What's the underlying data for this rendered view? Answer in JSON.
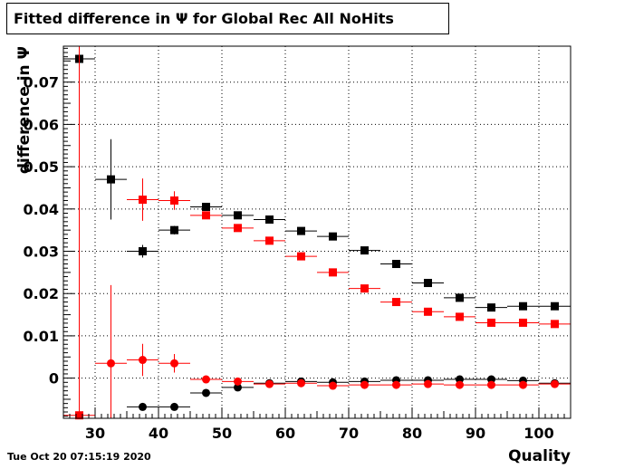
{
  "chart_data": {
    "type": "scatter",
    "title": "Fitted difference in  Ψ  for Global Rec All NoHits",
    "xlabel": "Quality",
    "ylabel": "difference in  Ψ",
    "xlim": [
      25,
      105
    ],
    "ylim": [
      -0.0095,
      0.0785
    ],
    "grid": true,
    "x_ticks": [
      30,
      40,
      50,
      60,
      70,
      80,
      90,
      100
    ],
    "y_ticks": [
      0,
      0.01,
      0.02,
      0.03,
      0.04,
      0.05,
      0.06,
      0.07
    ],
    "y_tick_labels": [
      "0",
      "0.01",
      "0.02",
      "0.03",
      "0.04",
      "0.05",
      "0.06",
      "0.07"
    ],
    "bin_half_width": 2.5,
    "series": [
      {
        "color": "#000000",
        "marker": "square",
        "points": [
          {
            "x": 27.5,
            "y": 0.0755,
            "err": 0.003
          },
          {
            "x": 32.5,
            "y": 0.047,
            "err": 0.0095
          },
          {
            "x": 37.5,
            "y": 0.03,
            "err": 0.0015
          },
          {
            "x": 42.5,
            "y": 0.035,
            "err": 0.001
          },
          {
            "x": 47.5,
            "y": 0.0405,
            "err": 0.0007
          },
          {
            "x": 52.5,
            "y": 0.0385,
            "err": 0.0005
          },
          {
            "x": 57.5,
            "y": 0.0375,
            "err": 0.0004
          },
          {
            "x": 62.5,
            "y": 0.0348,
            "err": 0.0004
          },
          {
            "x": 67.5,
            "y": 0.0335,
            "err": 0.0004
          },
          {
            "x": 72.5,
            "y": 0.0302,
            "err": 0.0004
          },
          {
            "x": 77.5,
            "y": 0.027,
            "err": 0.0004
          },
          {
            "x": 82.5,
            "y": 0.0225,
            "err": 0.0004
          },
          {
            "x": 87.5,
            "y": 0.019,
            "err": 0.0004
          },
          {
            "x": 92.5,
            "y": 0.0167,
            "err": 0.0004
          },
          {
            "x": 97.5,
            "y": 0.017,
            "err": 0.0004
          },
          {
            "x": 102.5,
            "y": 0.017,
            "err": 0.0004
          }
        ]
      },
      {
        "color": "#ff0000",
        "marker": "square",
        "points": [
          {
            "x": 27.5,
            "y": -0.0088,
            "err": 0.1
          },
          {
            "x": 37.5,
            "y": 0.0422,
            "err": 0.005
          },
          {
            "x": 42.5,
            "y": 0.042,
            "err": 0.0022
          },
          {
            "x": 47.5,
            "y": 0.0385,
            "err": 0.0009
          },
          {
            "x": 52.5,
            "y": 0.0355,
            "err": 0.0006
          },
          {
            "x": 57.5,
            "y": 0.0325,
            "err": 0.0005
          },
          {
            "x": 62.5,
            "y": 0.0288,
            "err": 0.0004
          },
          {
            "x": 67.5,
            "y": 0.025,
            "err": 0.0004
          },
          {
            "x": 72.5,
            "y": 0.0212,
            "err": 0.0004
          },
          {
            "x": 77.5,
            "y": 0.018,
            "err": 0.0004
          },
          {
            "x": 82.5,
            "y": 0.0157,
            "err": 0.0004
          },
          {
            "x": 87.5,
            "y": 0.0145,
            "err": 0.0004
          },
          {
            "x": 92.5,
            "y": 0.0131,
            "err": 0.0004
          },
          {
            "x": 97.5,
            "y": 0.0131,
            "err": 0.0004
          },
          {
            "x": 102.5,
            "y": 0.0128,
            "err": 0.0004
          }
        ]
      },
      {
        "color": "#000000",
        "marker": "circle",
        "points": [
          {
            "x": 37.5,
            "y": -0.0068,
            "err": 0.0007
          },
          {
            "x": 42.5,
            "y": -0.0068,
            "err": 0.0005
          },
          {
            "x": 47.5,
            "y": -0.0035,
            "err": 0.0003
          },
          {
            "x": 52.5,
            "y": -0.0022,
            "err": 0.0002
          },
          {
            "x": 57.5,
            "y": -0.0012,
            "err": 0.0002
          },
          {
            "x": 62.5,
            "y": -0.0008,
            "err": 0.0002
          },
          {
            "x": 67.5,
            "y": -0.001,
            "err": 0.0002
          },
          {
            "x": 72.5,
            "y": -0.0008,
            "err": 0.0002
          },
          {
            "x": 77.5,
            "y": -0.0005,
            "err": 0.0002
          },
          {
            "x": 82.5,
            "y": -0.0005,
            "err": 0.0002
          },
          {
            "x": 87.5,
            "y": -0.0003,
            "err": 0.0002
          },
          {
            "x": 92.5,
            "y": -0.0003,
            "err": 0.0002
          },
          {
            "x": 97.5,
            "y": -0.0006,
            "err": 0.0002
          },
          {
            "x": 102.5,
            "y": -0.0012,
            "err": 0.0002
          }
        ]
      },
      {
        "color": "#ff0000",
        "marker": "circle",
        "points": [
          {
            "x": 32.5,
            "y": 0.0035,
            "err": 0.0185
          },
          {
            "x": 37.5,
            "y": 0.0043,
            "err": 0.0038
          },
          {
            "x": 42.5,
            "y": 0.0035,
            "err": 0.0022
          },
          {
            "x": 47.5,
            "y": -0.0003,
            "err": 0.0008
          },
          {
            "x": 52.5,
            "y": -0.0008,
            "err": 0.0005
          },
          {
            "x": 57.5,
            "y": -0.0014,
            "err": 0.0004
          },
          {
            "x": 62.5,
            "y": -0.0012,
            "err": 0.0003
          },
          {
            "x": 67.5,
            "y": -0.0018,
            "err": 0.0003
          },
          {
            "x": 72.5,
            "y": -0.0016,
            "err": 0.0003
          },
          {
            "x": 77.5,
            "y": -0.0016,
            "err": 0.0003
          },
          {
            "x": 82.5,
            "y": -0.0014,
            "err": 0.0003
          },
          {
            "x": 87.5,
            "y": -0.0016,
            "err": 0.0003
          },
          {
            "x": 92.5,
            "y": -0.0016,
            "err": 0.0003
          },
          {
            "x": 97.5,
            "y": -0.0016,
            "err": 0.0003
          },
          {
            "x": 102.5,
            "y": -0.0014,
            "err": 0.0003
          }
        ]
      }
    ]
  },
  "footer": {
    "timestamp": "Tue Oct 20 07:15:19 2020"
  }
}
